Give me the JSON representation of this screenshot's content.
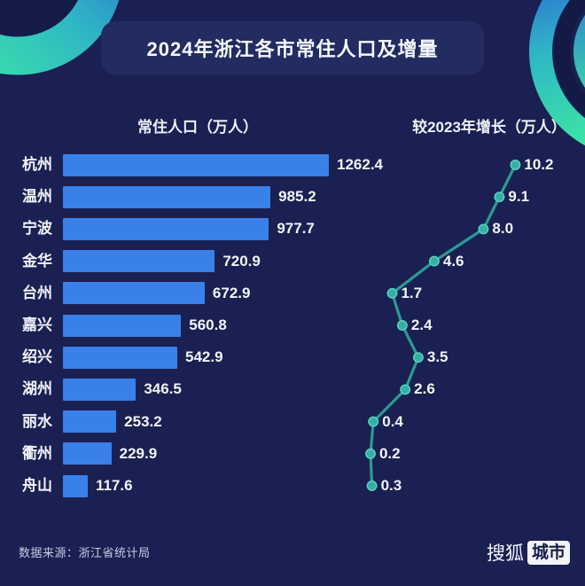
{
  "title": "2024年浙江各市常住人口及增量",
  "source": "数据来源：浙江省统计局",
  "logo": {
    "brand": "搜狐",
    "badge": "城市"
  },
  "colors": {
    "background": "#1a2051",
    "banner": "#232c60",
    "bar": "#3a80e9",
    "line": "#2b9a93",
    "marker_fill": "#36afa6",
    "marker_stroke": "#5ad0c0",
    "arc_green": "#3ce6a3",
    "arc_cyan": "#2fb9c4",
    "arc_blue": "#2e5ed6"
  },
  "chart_data": [
    {
      "type": "bar",
      "title": "常住人口（万人）",
      "orientation": "horizontal",
      "categories": [
        "杭州",
        "温州",
        "宁波",
        "金华",
        "台州",
        "嘉兴",
        "绍兴",
        "湖州",
        "丽水",
        "衢州",
        "舟山"
      ],
      "values": [
        1262.4,
        985.2,
        977.7,
        720.9,
        672.9,
        560.8,
        542.9,
        346.5,
        253.2,
        229.9,
        117.6
      ],
      "value_axis_range": [
        0,
        1262.4
      ],
      "grid": false,
      "data_labels": true
    },
    {
      "type": "line",
      "title": "较2023年增长（万人）",
      "orientation": "vertical-categories",
      "categories": [
        "杭州",
        "温州",
        "宁波",
        "金华",
        "台州",
        "嘉兴",
        "绍兴",
        "湖州",
        "丽水",
        "衢州",
        "舟山"
      ],
      "values": [
        10.2,
        9.1,
        8.0,
        4.6,
        1.7,
        2.4,
        3.5,
        2.6,
        0.4,
        0.2,
        0.3
      ],
      "value_axis_range": [
        0,
        10.2
      ],
      "grid": false,
      "data_labels": true,
      "marker": "circle"
    }
  ]
}
